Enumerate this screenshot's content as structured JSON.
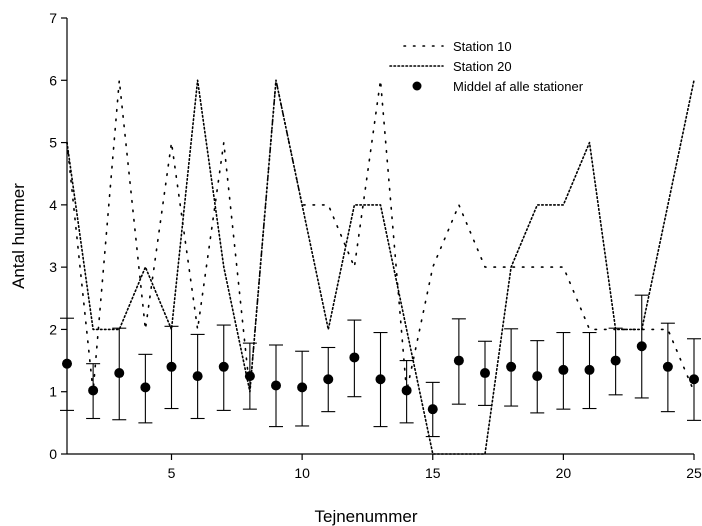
{
  "chart_data": {
    "type": "scatter",
    "title": "",
    "xlabel": "Tejnenummer",
    "ylabel": "Antal hummer",
    "xlim": [
      1,
      25
    ],
    "ylim": [
      0,
      7
    ],
    "x_ticks": [
      5,
      10,
      15,
      20,
      25
    ],
    "y_ticks": [
      0,
      1,
      2,
      3,
      4,
      5,
      6,
      7
    ],
    "grid": false,
    "legend_position": "top-right",
    "x": [
      1,
      2,
      3,
      4,
      5,
      6,
      7,
      8,
      9,
      10,
      11,
      12,
      13,
      14,
      15,
      16,
      17,
      18,
      19,
      20,
      21,
      22,
      23,
      24,
      25
    ],
    "series": [
      {
        "name": "Station 10",
        "kind": "line",
        "style": "sparse-dotted",
        "color": "#000000",
        "values": [
          5,
          1,
          6,
          2,
          5,
          2,
          5,
          1,
          6,
          4,
          4,
          3,
          6,
          1,
          3,
          4,
          3,
          3,
          3,
          3,
          2,
          2,
          2,
          2,
          1
        ]
      },
      {
        "name": "Station 20",
        "kind": "line",
        "style": "dense-dotted",
        "color": "#000000",
        "values": [
          5,
          2,
          2,
          3,
          2,
          6,
          3,
          1,
          6,
          4,
          2,
          4,
          4,
          2,
          0,
          0,
          0,
          3,
          4,
          4,
          5,
          2,
          2,
          4,
          6
        ]
      },
      {
        "name": "Middel af alle stationer",
        "kind": "points-with-error-bars",
        "color": "#000000",
        "values": [
          1.45,
          1.02,
          1.3,
          1.07,
          1.4,
          1.25,
          1.4,
          1.25,
          1.1,
          1.07,
          1.2,
          1.55,
          1.2,
          1.02,
          0.72,
          1.5,
          1.3,
          1.4,
          1.25,
          1.35,
          1.35,
          1.5,
          1.73,
          1.4,
          1.2
        ],
        "error_low": [
          0.7,
          0.57,
          0.55,
          0.5,
          0.73,
          0.57,
          0.7,
          0.72,
          0.44,
          0.45,
          0.68,
          0.92,
          0.44,
          0.5,
          0.28,
          0.8,
          0.78,
          0.77,
          0.66,
          0.72,
          0.73,
          0.95,
          0.9,
          0.68,
          0.54
        ],
        "error_high": [
          2.18,
          1.45,
          2.02,
          1.6,
          2.05,
          1.92,
          2.07,
          1.78,
          1.75,
          1.65,
          1.71,
          2.15,
          1.95,
          1.5,
          1.15,
          2.17,
          1.81,
          2.01,
          1.82,
          1.95,
          1.95,
          2.02,
          2.55,
          2.1,
          1.85
        ]
      }
    ]
  }
}
